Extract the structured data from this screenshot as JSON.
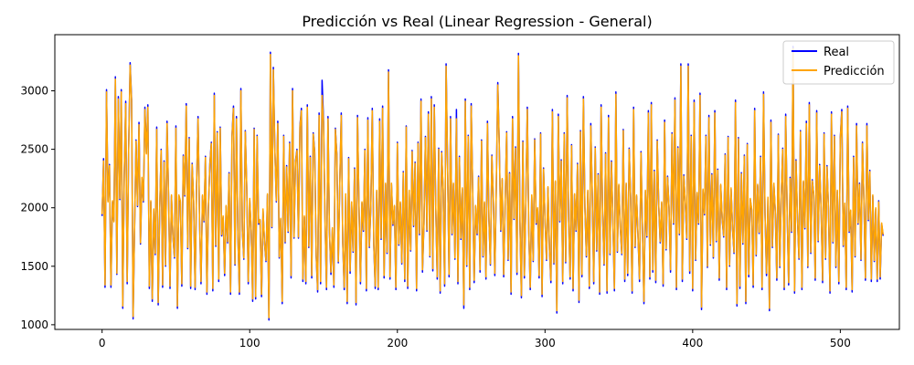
{
  "chart_data": {
    "type": "line",
    "title": "Predicción vs Real (Linear Regression - General)",
    "xlabel": "",
    "ylabel": "",
    "xlim": [
      -32,
      540
    ],
    "ylim": [
      960,
      3480
    ],
    "x_ticks": [
      0,
      100,
      200,
      300,
      400,
      500
    ],
    "y_ticks": [
      1000,
      1500,
      2000,
      2500,
      3000
    ],
    "grid": false,
    "legend_position": "top-right",
    "series": [
      {
        "name": "Real",
        "color": "#0000ff",
        "values": [
          1930,
          2420,
          1320,
          3010,
          2060,
          2370,
          1320,
          2050,
          1890,
          3120,
          1430,
          2950,
          2070,
          3010,
          1140,
          2280,
          2910,
          1350,
          2510,
          3240,
          2920,
          1050,
          1820,
          2580,
          2010,
          2730,
          1690,
          2250,
          2050,
          2860,
          2470,
          2880,
          1310,
          2050,
          1200,
          1980,
          1600,
          2690,
          1170,
          1970,
          2500,
          1320,
          2400,
          1500,
          2740,
          2110,
          1310,
          2100,
          1750,
          1570,
          2700,
          1140,
          2100,
          2050,
          1330,
          2450,
          2100,
          2890,
          1650,
          2600,
          1310,
          2380,
          2050,
          1300,
          2190,
          2780,
          1900,
          1350,
          2100,
          1880,
          2440,
          1260,
          1990,
          2380,
          2560,
          1290,
          2980,
          1670,
          2650,
          1370,
          2690,
          1760,
          1920,
          1420,
          2010,
          1700,
          2300,
          1260,
          2620,
          2870,
          1510,
          2780,
          1750,
          1260,
          3020,
          1800,
          1560,
          2660,
          2160,
          1350,
          2070,
          1800,
          1200,
          2680,
          1220,
          2620,
          1860,
          1890,
          1240,
          1980,
          1700,
          1540,
          2110,
          1040,
          3330,
          1830,
          3200,
          2500,
          2050,
          2740,
          1570,
          1900,
          1180,
          2620,
          1700,
          2360,
          1790,
          2560,
          1400,
          3020,
          1740,
          2400,
          2500,
          1740,
          2700,
          2850,
          1370,
          1920,
          1350,
          2880,
          1660,
          2440,
          1400,
          2640,
          2480,
          1590,
          1280,
          2810,
          1350,
          3090,
          2740,
          1900,
          1300,
          2780,
          1790,
          1430,
          1820,
          1320,
          2680,
          2460,
          1530,
          2220,
          2810,
          1700,
          1300,
          2110,
          1180,
          2430,
          1440,
          2040,
          1620,
          2340,
          1170,
          2790,
          2010,
          1350,
          2040,
          1800,
          2500,
          1290,
          2770,
          1660,
          2000,
          2850,
          1690,
          1310,
          2140,
          1300,
          2760,
          1730,
          2870,
          1400,
          2200,
          1610,
          3180,
          1390,
          2200,
          1850,
          2010,
          1300,
          2560,
          1680,
          2040,
          1520,
          2310,
          1370,
          2700,
          1310,
          2140,
          1630,
          2490,
          1840,
          2390,
          1290,
          2560,
          1770,
          2930,
          1450,
          1860,
          2610,
          1800,
          2820,
          1580,
          2950,
          1460,
          2880,
          1990,
          1390,
          2510,
          1270,
          2480,
          2150,
          1330,
          3230,
          2360,
          1410,
          2780,
          1770,
          2200,
          1560,
          2840,
          1350,
          2440,
          1730,
          2160,
          1140,
          2930,
          1500,
          2620,
          1300,
          2890,
          2160,
          1360,
          2010,
          1770,
          2270,
          1450,
          2580,
          1580,
          2040,
          1390,
          2740,
          1900,
          1510,
          2450,
          2070,
          1420,
          2180,
          3070,
          2550,
          1800,
          2240,
          1410,
          2040,
          2650,
          1550,
          2300,
          1260,
          2780,
          1900,
          2520,
          1430,
          3320,
          1880,
          1230,
          2570,
          1400,
          2060,
          2860,
          1790,
          1300,
          2100,
          1540,
          2590,
          1860,
          1990,
          1400,
          2640,
          1240,
          2340,
          1900,
          1550,
          2170,
          1640,
          1360,
          2840,
          1520,
          2220,
          1100,
          2800,
          1880,
          2410,
          1350,
          2640,
          1530,
          2960,
          1890,
          1390,
          2540,
          1290,
          2110,
          1800,
          2380,
          1190,
          2660,
          1410,
          2950,
          2010,
          1580,
          2140,
          1310,
          2720,
          2100,
          1350,
          2520,
          1630,
          2290,
          1260,
          2880,
          1940,
          1510,
          2470,
          1270,
          2790,
          1600,
          2400,
          1870,
          1290,
          2990,
          1620,
          2190,
          1820,
          1600,
          2670,
          1370,
          2200,
          1420,
          2510,
          2070,
          1270,
          2860,
          1660,
          2100,
          1750,
          1370,
          2480,
          1810,
          1180,
          2140,
          1750,
          2830,
          1390,
          2900,
          1450,
          2320,
          1360,
          2580,
          2020,
          1700,
          2040,
          1330,
          2750,
          1640,
          2270,
          1990,
          1450,
          2640,
          1860,
          2940,
          1300,
          2520,
          1770,
          3230,
          1370,
          2280,
          2040,
          1730,
          3230,
          1440,
          2620,
          1290,
          2920,
          1550,
          2120,
          1860,
          2980,
          1130,
          2150,
          1940,
          2620,
          1490,
          2790,
          1680,
          2290,
          1570,
          2830,
          1710,
          2330,
          1380,
          2190,
          1900,
          1750,
          2460,
          1300,
          2610,
          1500,
          2160,
          1820,
          1610,
          2920,
          1160,
          2600,
          1310,
          2300,
          1690,
          2450,
          1180,
          2550,
          1410,
          2070,
          1980,
          1320,
          2850,
          1590,
          2190,
          1780,
          2440,
          1300,
          2990,
          1950,
          1420,
          2080,
          1120,
          2750,
          1660,
          2200,
          1950,
          1380,
          2630,
          1490,
          2100,
          2510,
          1300,
          2800,
          1960,
          1340,
          2260,
          1790,
          3380,
          1270,
          2410,
          1900,
          1560,
          2660,
          1300,
          2220,
          1820,
          2740,
          1490,
          2900,
          1610,
          2240,
          2110,
          1380,
          2830,
          1710,
          2370,
          1990,
          1360,
          2640,
          1560,
          2360,
          1980,
          1270,
          2820,
          1700,
          2620,
          1490,
          2140,
          1350,
          2600,
          2840,
          1670,
          2030,
          1300,
          2870,
          1790,
          1970,
          1280,
          2440,
          1580,
          2720,
          1860,
          2210,
          1550,
          2560,
          2060,
          1380,
          2720,
          1890,
          2320,
          1370,
          2100,
          1540,
          1990,
          1370,
          2060,
          1390,
          1860,
          1760
        ]
      },
      {
        "name": "Predicción",
        "color": "#ffa500",
        "values": [
          1945,
          2400,
          1340,
          2990,
          2050,
          2360,
          1340,
          2060,
          1880,
          3100,
          1440,
          2930,
          2080,
          2990,
          1160,
          2270,
          2890,
          1370,
          2500,
          3220,
          2900,
          1070,
          1830,
          2570,
          2020,
          2710,
          1700,
          2260,
          2060,
          2840,
          2460,
          2860,
          1330,
          2060,
          1220,
          1990,
          1610,
          2670,
          1190,
          1980,
          2490,
          1340,
          2390,
          1510,
          2720,
          2120,
          1330,
          2110,
          1760,
          1580,
          2680,
          1160,
          2110,
          2060,
          1350,
          2440,
          2110,
          2870,
          1660,
          2590,
          1330,
          2370,
          2060,
          1320,
          2200,
          2760,
          1910,
          1370,
          2110,
          1890,
          2430,
          1280,
          2000,
          2370,
          2550,
          1310,
          2960,
          1680,
          2640,
          1390,
          2680,
          1770,
          1930,
          1440,
          2020,
          1710,
          2290,
          1280,
          2610,
          2850,
          1520,
          2760,
          1760,
          1280,
          3000,
          1810,
          1570,
          2650,
          2170,
          1370,
          2080,
          1810,
          1220,
          2670,
          1240,
          2610,
          1870,
          1900,
          1260,
          1990,
          1710,
          1550,
          2120,
          1060,
          3310,
          1840,
          3180,
          2490,
          2060,
          2720,
          1580,
          1910,
          1200,
          2610,
          1710,
          2350,
          1800,
          2550,
          1420,
          3000,
          1750,
          2390,
          2490,
          1750,
          2690,
          2830,
          1390,
          1930,
          1370,
          2860,
          1670,
          2430,
          1420,
          2630,
          2470,
          1600,
          1300,
          2790,
          1370,
          2960,
          2720,
          1910,
          1320,
          2760,
          1800,
          1450,
          1830,
          1340,
          2670,
          2450,
          1540,
          2210,
          2790,
          1710,
          1320,
          2120,
          1200,
          2420,
          1460,
          2050,
          1630,
          2330,
          1190,
          2770,
          2020,
          1370,
          2050,
          1810,
          2490,
          1310,
          2750,
          1670,
          2010,
          2830,
          1700,
          1330,
          2150,
          1320,
          2740,
          1740,
          2850,
          1420,
          2210,
          1620,
          3160,
          1410,
          2210,
          1860,
          2020,
          1320,
          2550,
          1690,
          2050,
          1530,
          2300,
          1390,
          2690,
          1330,
          2150,
          1640,
          2480,
          1850,
          2380,
          1310,
          2550,
          1780,
          2910,
          1470,
          1870,
          2600,
          1810,
          2800,
          1590,
          2930,
          1480,
          2860,
          2000,
          1410,
          2500,
          1290,
          2470,
          2160,
          1350,
          3210,
          2350,
          1430,
          2760,
          1780,
          2210,
          1570,
          2760,
          1370,
          2430,
          1740,
          2170,
          1170,
          2910,
          1510,
          2610,
          1320,
          2870,
          2170,
          1380,
          2020,
          1780,
          2260,
          1470,
          2570,
          1590,
          2050,
          1410,
          2720,
          1910,
          1520,
          2440,
          2080,
          1440,
          2190,
          3050,
          2540,
          1810,
          2250,
          1430,
          2050,
          2640,
          1560,
          2290,
          1280,
          2760,
          1910,
          2510,
          1450,
          3300,
          1890,
          1250,
          2560,
          1420,
          2070,
          2840,
          1800,
          1320,
          2110,
          1550,
          2580,
          1870,
          2000,
          1420,
          2630,
          1260,
          2330,
          1910,
          1560,
          2180,
          1650,
          1380,
          2820,
          1530,
          2230,
          1120,
          2780,
          1890,
          2400,
          1370,
          2630,
          1540,
          2940,
          1900,
          1410,
          2530,
          1310,
          2120,
          1810,
          2370,
          1210,
          2650,
          1430,
          2930,
          2020,
          1590,
          2150,
          1330,
          2700,
          2110,
          1370,
          2510,
          1640,
          2280,
          1280,
          2860,
          1950,
          1520,
          2460,
          1290,
          2770,
          1610,
          2390,
          1880,
          1310,
          2970,
          1630,
          2200,
          1830,
          1610,
          2660,
          1390,
          2210,
          1440,
          2500,
          2080,
          1290,
          2840,
          1670,
          2110,
          1760,
          1390,
          2470,
          1820,
          1200,
          2150,
          1760,
          2810,
          1410,
          2880,
          1470,
          2310,
          1380,
          2570,
          2030,
          1710,
          2050,
          1350,
          2730,
          1650,
          2260,
          2000,
          1470,
          2630,
          1870,
          2920,
          1320,
          2510,
          1780,
          3210,
          1390,
          2270,
          2050,
          1740,
          3210,
          1460,
          2610,
          1310,
          2900,
          1560,
          2130,
          1870,
          2960,
          1150,
          2160,
          1950,
          2610,
          1500,
          2770,
          1690,
          2280,
          1580,
          2810,
          1720,
          2320,
          1400,
          2200,
          1910,
          1760,
          2450,
          1320,
          2600,
          1510,
          2170,
          1830,
          1620,
          2900,
          1180,
          2590,
          1330,
          2290,
          1700,
          2440,
          1200,
          2540,
          1430,
          2080,
          1990,
          1340,
          2830,
          1600,
          2200,
          1790,
          2430,
          1320,
          2970,
          1960,
          1440,
          2090,
          1140,
          2730,
          1670,
          2210,
          1960,
          1400,
          2620,
          1500,
          2110,
          2500,
          1320,
          2780,
          1970,
          1360,
          2250,
          1800,
          3360,
          1290,
          2400,
          1910,
          1570,
          2650,
          1320,
          2230,
          1830,
          2720,
          1500,
          2880,
          1620,
          2230,
          2120,
          1400,
          2810,
          1720,
          2360,
          2000,
          1380,
          2630,
          1570,
          2350,
          1990,
          1290,
          2800,
          1710,
          2610,
          1500,
          2150,
          1370,
          2590,
          2820,
          1680,
          2040,
          1320,
          2850,
          1800,
          1980,
          1300,
          2430,
          1590,
          2700,
          1870,
          2200,
          1560,
          2550,
          2070,
          1400,
          2700,
          1900,
          2310,
          1390,
          2110,
          1550,
          2000,
          1390,
          2050,
          1410,
          1870,
          1770
        ]
      }
    ]
  }
}
